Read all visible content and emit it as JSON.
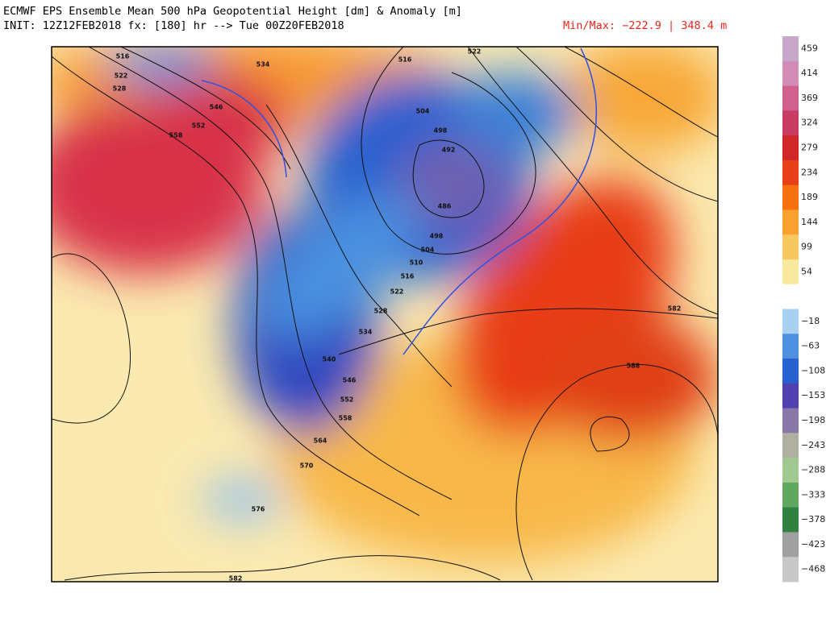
{
  "header": {
    "title": "ECMWF EPS Ensemble Mean 500 hPa Geopotential Height [dm] & Anomaly [m]",
    "init": "INIT: 12Z12FEB2018 fx: [180] hr --> Tue 00Z20FEB2018",
    "minmax": "Min/Max: −222.9 | 348.4 m"
  },
  "colorbar": {
    "ticks": [
      459,
      414,
      369,
      324,
      279,
      234,
      189,
      144,
      99,
      54,
      {
        "value": -18,
        "label": "−18"
      },
      {
        "value": -63,
        "label": "−63"
      },
      {
        "value": -108,
        "label": "−108"
      },
      {
        "value": -153,
        "label": "−153"
      },
      {
        "value": -198,
        "label": "−198"
      },
      {
        "value": -243,
        "label": "−243"
      },
      {
        "value": -288,
        "label": "−288"
      },
      {
        "value": -333,
        "label": "−333"
      },
      {
        "value": -378,
        "label": "−378"
      },
      {
        "value": -423,
        "label": "−423"
      },
      {
        "value": -468,
        "label": "−468"
      }
    ],
    "colors": [
      "#c8a8c8",
      "#d08cb4",
      "#d0608c",
      "#c83c64",
      "#d02828",
      "#e84018",
      "#f87010",
      "#f8a030",
      "#f8c860",
      "#f8e8a0",
      "#ffffff",
      "#a8d0f0",
      "#5090e0",
      "#2860d0",
      "#5040b0",
      "#8878a8",
      "#b0b0a0",
      "#a0c890",
      "#60a860",
      "#308040",
      "#a0a0a0",
      "#c8c8c8"
    ]
  },
  "map": {
    "contour_labels": [
      "516",
      "522",
      "528",
      "534",
      "546",
      "552",
      "558",
      "516",
      "522",
      "504",
      "498",
      "492",
      "486",
      "498",
      "504",
      "510",
      "516",
      "522",
      "528",
      "534",
      "540",
      "546",
      "552",
      "558",
      "564",
      "570",
      "576",
      "582",
      "582",
      "588"
    ]
  }
}
